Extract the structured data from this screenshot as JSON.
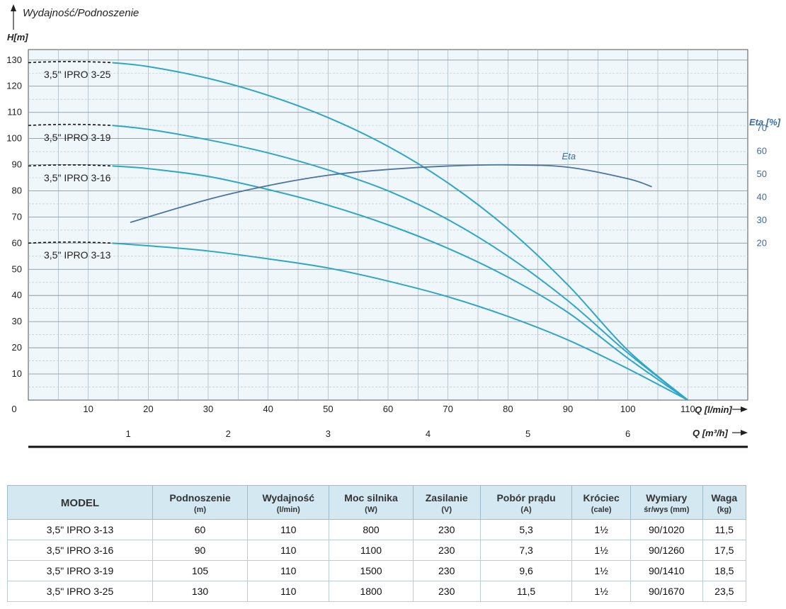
{
  "chart_data": {
    "type": "line",
    "title": "Wydajność/Podnoszenie",
    "ylabel": "H[m]",
    "xlabel": "Q [l/min]",
    "xlabel2": "Q [m³/h]",
    "y2label": "Eta [%]",
    "xlim": [
      0,
      120
    ],
    "ylim": [
      0,
      134
    ],
    "y2lim": [
      0,
      100
    ],
    "x_ticks": [
      "0",
      "10",
      "20",
      "30",
      "40",
      "50",
      "60",
      "70",
      "80",
      "90",
      "100",
      "110"
    ],
    "y_ticks": [
      "10",
      "20",
      "30",
      "40",
      "50",
      "60",
      "70",
      "80",
      "90",
      "100",
      "110",
      "120",
      "130"
    ],
    "y2_ticks": [
      "20",
      "30",
      "40",
      "50",
      "60",
      "70"
    ],
    "x2_ticks": [
      "1",
      "2",
      "3",
      "4",
      "5",
      "6"
    ],
    "grid": true,
    "series": [
      {
        "name": "3,5\" IPRO 3-25",
        "label_y": 125,
        "x": [
          0,
          14,
          20,
          30,
          40,
          50,
          60,
          70,
          80,
          90,
          100,
          110
        ],
        "y": [
          129,
          129,
          127.5,
          123,
          116.5,
          108,
          97,
          83,
          65.5,
          44,
          19,
          0
        ]
      },
      {
        "name": "3,5\" IPRO 3-19",
        "label_y": 101,
        "x": [
          0,
          14,
          20,
          30,
          40,
          50,
          60,
          70,
          80,
          90,
          100,
          110
        ],
        "y": [
          105,
          105,
          103.5,
          99.5,
          94.5,
          88,
          80,
          69,
          55,
          38,
          18,
          0
        ]
      },
      {
        "name": "3,5\" IPRO 3-16",
        "label_y": 85.5,
        "x": [
          0,
          14,
          20,
          30,
          40,
          50,
          60,
          70,
          80,
          90,
          100,
          110
        ],
        "y": [
          89.5,
          89.5,
          88.5,
          85.5,
          80.5,
          74.5,
          67,
          58,
          47,
          33.5,
          16,
          0
        ]
      },
      {
        "name": "3,5\" IPRO 3-13",
        "label_y": 56,
        "x": [
          0,
          14,
          20,
          30,
          40,
          50,
          60,
          70,
          80,
          90,
          100,
          110
        ],
        "y": [
          60,
          60,
          59,
          57,
          54,
          50.5,
          45.5,
          39.5,
          32,
          23,
          12,
          0
        ]
      }
    ],
    "eta": {
      "name": "Eta",
      "x": [
        17,
        30,
        40,
        50,
        60,
        70,
        80,
        90,
        100,
        104
      ],
      "y": [
        29,
        39,
        45,
        49.5,
        52,
        53.5,
        54,
        53,
        48,
        44.5
      ]
    }
  },
  "table": {
    "headers": [
      {
        "label": "MODEL",
        "unit": ""
      },
      {
        "label": "Podnoszenie",
        "unit": "(m)"
      },
      {
        "label": "Wydajność",
        "unit": "(l/min)"
      },
      {
        "label": "Moc silnika",
        "unit": "(W)"
      },
      {
        "label": "Zasilanie",
        "unit": "(V)"
      },
      {
        "label": "Pobór prądu",
        "unit": "(A)"
      },
      {
        "label": "Króciec",
        "unit": "(cale)"
      },
      {
        "label": "Wymiary",
        "unit": "śr/wys (mm)"
      },
      {
        "label": "Waga",
        "unit": "(kg)"
      }
    ],
    "rows": [
      [
        "3,5\" IPRO 3-13",
        "60",
        "110",
        "800",
        "230",
        "5,3",
        "1½",
        "90/1020",
        "11,5"
      ],
      [
        "3,5\" IPRO 3-16",
        "90",
        "110",
        "1100",
        "230",
        "7,3",
        "1½",
        "90/1260",
        "17,5"
      ],
      [
        "3,5\" IPRO 3-19",
        "105",
        "110",
        "1500",
        "230",
        "9,6",
        "1½",
        "90/1410",
        "18,5"
      ],
      [
        "3,5\" IPRO 3-25",
        "130",
        "110",
        "1800",
        "230",
        "11,5",
        "1½",
        "90/1670",
        "23,5"
      ]
    ]
  },
  "colors": {
    "curve": "#2fa6c8",
    "eta": "#4a74a1",
    "plot_bg": "#f0f7fb",
    "grid": "#9aa9b3"
  }
}
